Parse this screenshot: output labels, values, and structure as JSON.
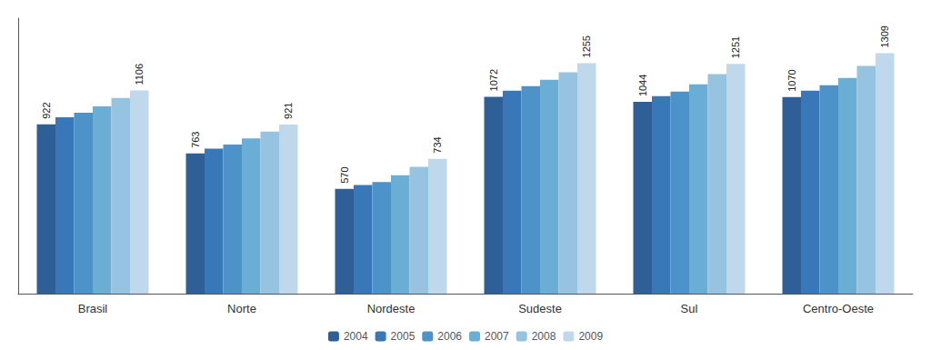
{
  "chart_data": {
    "type": "bar",
    "categories": [
      "Brasil",
      "Norte",
      "Nordeste",
      "Sudeste",
      "Sul",
      "Centro-Oeste"
    ],
    "series": [
      {
        "name": "2004",
        "color": "#2E6097",
        "values": [
          922,
          763,
          570,
          1072,
          1044,
          1070
        ],
        "data_labels": true
      },
      {
        "name": "2005",
        "color": "#3878B8",
        "values": [
          960,
          790,
          592,
          1105,
          1075,
          1105
        ]
      },
      {
        "name": "2006",
        "color": "#4D92C8",
        "values": [
          985,
          812,
          608,
          1130,
          1100,
          1135
        ]
      },
      {
        "name": "2007",
        "color": "#6AAED6",
        "values": [
          1020,
          845,
          645,
          1165,
          1140,
          1175
        ]
      },
      {
        "name": "2008",
        "color": "#96C4E0",
        "values": [
          1065,
          882,
          690,
          1205,
          1195,
          1240
        ]
      },
      {
        "name": "2009",
        "color": "#C0D8EC",
        "values": [
          1106,
          921,
          734,
          1255,
          1251,
          1309
        ],
        "data_labels": true
      }
    ],
    "ylim": [
      0,
      1500
    ],
    "grid": false,
    "legend": "bottom",
    "tick_labels": "x"
  }
}
